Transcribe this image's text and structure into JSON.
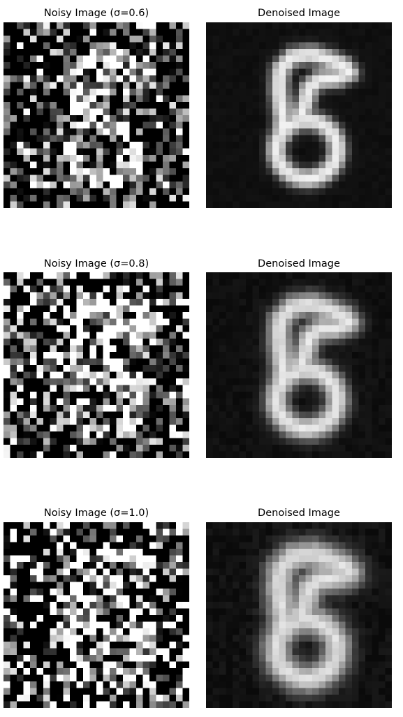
{
  "rows": [
    {
      "noisy": {
        "title": "Noisy Image (σ=0.6)",
        "sigma": 0.6
      },
      "denoised": {
        "title": "Denoised Image"
      }
    },
    {
      "noisy": {
        "title": "Noisy Image (σ=0.8)",
        "sigma": 0.8
      },
      "denoised": {
        "title": "Denoised Image"
      }
    },
    {
      "noisy": {
        "title": "Noisy Image (σ=1.0)",
        "sigma": 1.0
      },
      "denoised": {
        "title": "Denoised Image"
      }
    }
  ],
  "colors": {
    "background": "#ffffff",
    "image_background": "#000000",
    "title_text": "#000000"
  }
}
